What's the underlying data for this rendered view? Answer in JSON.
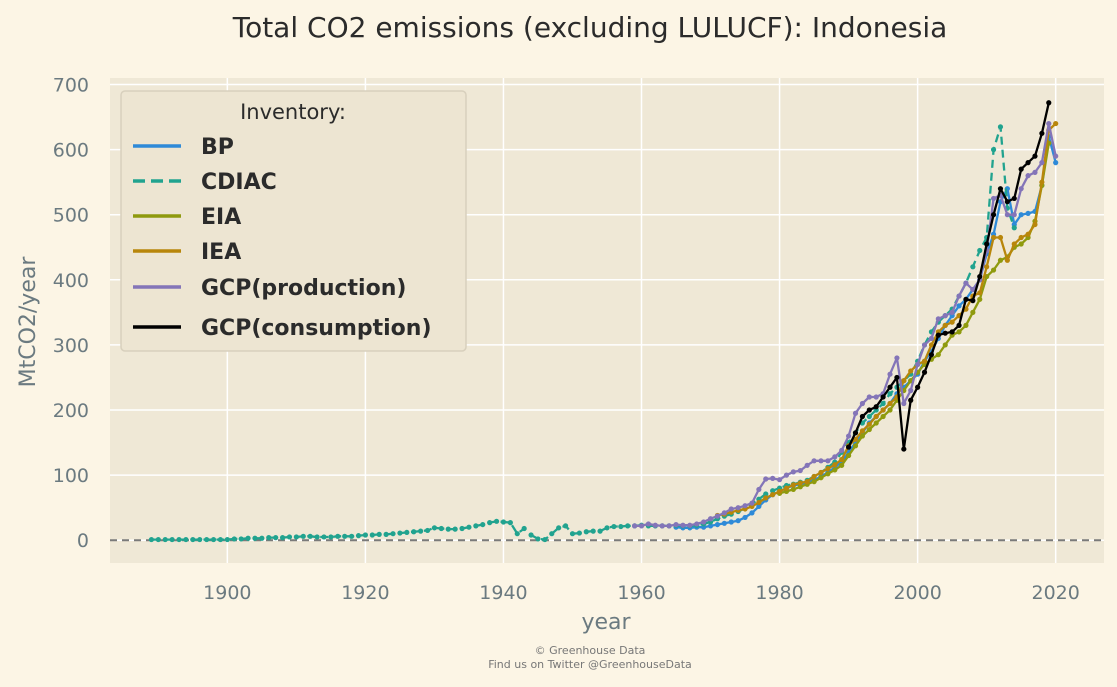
{
  "chart_data": {
    "type": "line",
    "title": "Total CO2 emissions (excluding LULUCF): Indonesia",
    "xlabel": "year",
    "ylabel": "MtCO2/year",
    "xlim": [
      1883,
      2027
    ],
    "ylim": [
      -35,
      710
    ],
    "xticks": [
      1900,
      1920,
      1940,
      1960,
      1980,
      2000,
      2020
    ],
    "yticks": [
      0,
      100,
      200,
      300,
      400,
      500,
      600,
      700
    ],
    "grid": true,
    "zero_line": true,
    "legend": {
      "title": "Inventory:",
      "position": "top-left"
    },
    "series": [
      {
        "name": "BP",
        "color": "#2e8ad8",
        "dash": "solid",
        "markers": true,
        "x": [
          1965,
          1966,
          1967,
          1968,
          1969,
          1970,
          1971,
          1972,
          1973,
          1974,
          1975,
          1976,
          1977,
          1978,
          1979,
          1980,
          1981,
          1982,
          1983,
          1984,
          1985,
          1986,
          1987,
          1988,
          1989,
          1990,
          1991,
          1992,
          1993,
          1994,
          1995,
          1996,
          1997,
          1998,
          1999,
          2000,
          2001,
          2002,
          2003,
          2004,
          2005,
          2006,
          2007,
          2008,
          2009,
          2010,
          2011,
          2012,
          2013,
          2014,
          2015,
          2016,
          2017,
          2018,
          2019,
          2020
        ],
        "y": [
          20,
          19,
          19,
          20,
          20,
          22,
          24,
          26,
          28,
          30,
          35,
          42,
          52,
          62,
          70,
          75,
          80,
          84,
          86,
          89,
          92,
          98,
          104,
          112,
          120,
          135,
          150,
          165,
          180,
          190,
          200,
          210,
          225,
          235,
          245,
          255,
          275,
          290,
          310,
          330,
          345,
          360,
          370,
          385,
          400,
          440,
          470,
          520,
          540,
          485,
          500,
          502,
          505,
          545,
          620,
          580
        ]
      },
      {
        "name": "CDIAC",
        "color": "#21a38f",
        "dash": "dashed",
        "markers": true,
        "x": [
          1889,
          1890,
          1891,
          1892,
          1893,
          1894,
          1895,
          1896,
          1897,
          1898,
          1899,
          1900,
          1901,
          1902,
          1903,
          1904,
          1905,
          1906,
          1907,
          1908,
          1909,
          1910,
          1911,
          1912,
          1913,
          1914,
          1915,
          1916,
          1917,
          1918,
          1919,
          1920,
          1921,
          1922,
          1923,
          1924,
          1925,
          1926,
          1927,
          1928,
          1929,
          1930,
          1931,
          1932,
          1933,
          1934,
          1935,
          1936,
          1937,
          1938,
          1939,
          1940,
          1941,
          1942,
          1943,
          1944,
          1945,
          1946,
          1947,
          1948,
          1949,
          1950,
          1951,
          1952,
          1953,
          1954,
          1955,
          1956,
          1957,
          1958,
          1959,
          1960,
          1961,
          1962,
          1963,
          1964,
          1965,
          1966,
          1967,
          1968,
          1969,
          1970,
          1971,
          1972,
          1973,
          1974,
          1975,
          1976,
          1977,
          1978,
          1979,
          1980,
          1981,
          1982,
          1983,
          1984,
          1985,
          1986,
          1987,
          1988,
          1989,
          1990,
          1991,
          1992,
          1993,
          1994,
          1995,
          1996,
          1997,
          1998,
          1999,
          2000,
          2001,
          2002,
          2003,
          2004,
          2005,
          2006,
          2007,
          2008,
          2009,
          2010,
          2011,
          2012,
          2013,
          2014
        ],
        "y": [
          1,
          1,
          1,
          1,
          1,
          1,
          1,
          1,
          1,
          1,
          1,
          1,
          2,
          2,
          3,
          3,
          3,
          4,
          4,
          4,
          5,
          5,
          6,
          6,
          5,
          5,
          5,
          6,
          6,
          6,
          7,
          8,
          8,
          9,
          9,
          10,
          11,
          12,
          13,
          14,
          15,
          19,
          18,
          17,
          17,
          18,
          20,
          22,
          24,
          27,
          29,
          28,
          27,
          10,
          18,
          8,
          2,
          1,
          10,
          19,
          22,
          10,
          11,
          13,
          14,
          14,
          19,
          21,
          21,
          22,
          22,
          23,
          22,
          22,
          22,
          22,
          23,
          22,
          22,
          23,
          25,
          28,
          33,
          37,
          40,
          44,
          49,
          56,
          63,
          71,
          76,
          80,
          84,
          86,
          89,
          92,
          98,
          104,
          112,
          120,
          135,
          150,
          165,
          180,
          190,
          200,
          210,
          225,
          235,
          245,
          255,
          275,
          300,
          320,
          335,
          345,
          355,
          375,
          395,
          420,
          445,
          465,
          600,
          635,
          510,
          480
        ]
      },
      {
        "name": "EIA",
        "color": "#8f9a0e",
        "dash": "solid",
        "markers": true,
        "x": [
          1980,
          1981,
          1982,
          1983,
          1984,
          1985,
          1986,
          1987,
          1988,
          1989,
          1990,
          1991,
          1992,
          1993,
          1994,
          1995,
          1996,
          1997,
          1998,
          1999,
          2000,
          2001,
          2002,
          2003,
          2004,
          2005,
          2006,
          2007,
          2008,
          2009,
          2010,
          2011,
          2012,
          2013,
          2014,
          2015,
          2016,
          2017,
          2018,
          2019
        ],
        "y": [
          72,
          75,
          78,
          82,
          86,
          90,
          96,
          102,
          108,
          115,
          130,
          145,
          160,
          170,
          180,
          190,
          200,
          215,
          230,
          245,
          258,
          270,
          278,
          285,
          300,
          315,
          320,
          330,
          350,
          370,
          405,
          415,
          430,
          435,
          450,
          455,
          465,
          490,
          545,
          610
        ]
      },
      {
        "name": "IEA",
        "color": "#b8860b",
        "dash": "solid",
        "markers": true,
        "x": [
          1971,
          1972,
          1973,
          1974,
          1975,
          1976,
          1977,
          1978,
          1979,
          1980,
          1981,
          1982,
          1983,
          1984,
          1985,
          1986,
          1987,
          1988,
          1989,
          1990,
          1991,
          1992,
          1993,
          1994,
          1995,
          1996,
          1997,
          1998,
          1999,
          2000,
          2001,
          2002,
          2003,
          2004,
          2005,
          2006,
          2007,
          2008,
          2009,
          2010,
          2011,
          2012,
          2013,
          2014,
          2015,
          2016,
          2017,
          2018,
          2019,
          2020
        ],
        "y": [
          38,
          40,
          43,
          46,
          48,
          52,
          58,
          65,
          70,
          75,
          80,
          85,
          88,
          90,
          98,
          104,
          110,
          116,
          124,
          145,
          155,
          168,
          178,
          190,
          200,
          210,
          220,
          245,
          260,
          270,
          275,
          300,
          320,
          330,
          335,
          345,
          355,
          375,
          380,
          420,
          465,
          465,
          430,
          455,
          465,
          470,
          485,
          550,
          630,
          640
        ]
      },
      {
        "name": "GCP(production)",
        "color": "#8475b8",
        "dash": "solid",
        "markers": true,
        "x": [
          1959,
          1960,
          1961,
          1962,
          1963,
          1964,
          1965,
          1966,
          1967,
          1968,
          1969,
          1970,
          1971,
          1972,
          1973,
          1974,
          1975,
          1976,
          1977,
          1978,
          1979,
          1980,
          1981,
          1982,
          1983,
          1984,
          1985,
          1986,
          1987,
          1988,
          1989,
          1990,
          1991,
          1992,
          1993,
          1994,
          1995,
          1996,
          1997,
          1998,
          1999,
          2000,
          2001,
          2002,
          2003,
          2004,
          2005,
          2006,
          2007,
          2008,
          2009,
          2010,
          2011,
          2012,
          2013,
          2014,
          2015,
          2016,
          2017,
          2018,
          2019,
          2020
        ],
        "y": [
          22,
          22,
          25,
          23,
          22,
          22,
          24,
          23,
          23,
          25,
          28,
          33,
          37,
          42,
          48,
          50,
          53,
          57,
          78,
          94,
          95,
          93,
          100,
          105,
          107,
          115,
          122,
          122,
          122,
          128,
          138,
          160,
          195,
          210,
          220,
          220,
          225,
          255,
          280,
          210,
          230,
          270,
          300,
          310,
          340,
          345,
          350,
          375,
          395,
          385,
          400,
          445,
          525,
          530,
          500,
          500,
          540,
          560,
          565,
          580,
          640,
          590
        ]
      },
      {
        "name": "GCP(consumption)",
        "color": "#000000",
        "dash": "solid",
        "markers": true,
        "x": [
          1990,
          1991,
          1992,
          1993,
          1994,
          1995,
          1996,
          1997,
          1998,
          1999,
          2000,
          2001,
          2002,
          2003,
          2004,
          2005,
          2006,
          2007,
          2008,
          2009,
          2010,
          2011,
          2012,
          2013,
          2014,
          2015,
          2016,
          2017,
          2018,
          2019
        ],
        "y": [
          143,
          165,
          190,
          200,
          205,
          220,
          235,
          250,
          140,
          215,
          235,
          258,
          285,
          315,
          318,
          320,
          330,
          370,
          368,
          405,
          455,
          500,
          540,
          520,
          525,
          570,
          580,
          590,
          625,
          672
        ]
      }
    ]
  },
  "credits": {
    "line1": "© Greenhouse Data",
    "line2": "Find us on Twitter @GreenhouseData"
  }
}
